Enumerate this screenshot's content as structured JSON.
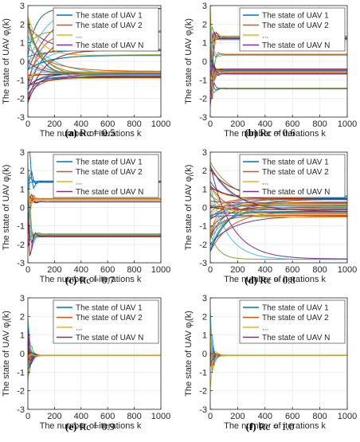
{
  "chart_data": [
    {
      "panel": "a",
      "caption_label": "(a)",
      "caption_text": "Rc = 0.5",
      "type": "line",
      "xlabel": "The number of iterations k",
      "ylabel": "The state of UAV φ",
      "ylabel_suffix": "(k)",
      "ylabel_sub": "i",
      "xlim": [
        0,
        1000
      ],
      "ylim": [
        -3,
        3
      ],
      "xticks": [
        0,
        200,
        400,
        600,
        800,
        1000
      ],
      "yticks": [
        -3,
        -2,
        -1,
        0,
        1,
        2,
        3
      ],
      "grid": true,
      "legend_position": "top-right",
      "legend": [
        "The state of UAV 1",
        "The state of UAV 2",
        "...",
        "The state of UAV N"
      ],
      "final_levels": [
        2.85,
        1.6,
        0.65,
        0.6,
        0.35,
        -0.55,
        -0.6,
        -0.65,
        -0.7,
        -0.75,
        -0.8,
        -0.9
      ],
      "converge_end": 1000
    },
    {
      "panel": "b",
      "caption_label": "(b)",
      "caption_text": "Rc = 0.6",
      "type": "line",
      "xlabel": "The number of iterations k",
      "ylabel": "The state of UAV φ",
      "ylabel_suffix": "(k)",
      "ylabel_sub": "i",
      "xlim": [
        0,
        1000
      ],
      "ylim": [
        -3,
        3
      ],
      "xticks": [
        0,
        200,
        400,
        600,
        800,
        1000
      ],
      "yticks": [
        -3,
        -2,
        -1,
        0,
        1,
        2,
        3
      ],
      "grid": true,
      "legend_position": "top-right",
      "legend": [
        "The state of UAV 1",
        "The state of UAV 2",
        "...",
        "The state of UAV N"
      ],
      "final_levels": [
        1.35,
        1.3,
        1.25,
        1.2,
        0.35,
        -0.4,
        -0.5,
        -0.55,
        -0.6,
        -0.65,
        -1.45
      ],
      "converge_end": 60
    },
    {
      "panel": "c",
      "caption_label": "(c)",
      "caption_text": "Rc = 0.7",
      "type": "line",
      "xlabel": "The number of iterations k",
      "ylabel": "The state of UAV φ",
      "ylabel_suffix": "(k)",
      "ylabel_sub": "i",
      "xlim": [
        0,
        1000
      ],
      "ylim": [
        -3,
        3
      ],
      "xticks": [
        0,
        200,
        400,
        600,
        800,
        1000
      ],
      "yticks": [
        -3,
        -2,
        -1,
        0,
        1,
        2,
        3
      ],
      "grid": true,
      "legend_position": "top-right",
      "legend": [
        "The state of UAV 1",
        "The state of UAV 2",
        "...",
        "The state of UAV N"
      ],
      "final_levels": [
        1.4,
        0.45,
        0.4,
        0.3,
        -1.45,
        -1.5,
        -1.55
      ],
      "converge_end": 60
    },
    {
      "panel": "d",
      "caption_label": "(d)",
      "caption_text": "Rc = 0.8",
      "type": "line",
      "xlabel": "The number of iterations k",
      "ylabel": "The state of UAV φ",
      "ylabel_suffix": "(k)",
      "ylabel_sub": "i",
      "xlim": [
        0,
        1000
      ],
      "ylim": [
        -3,
        3
      ],
      "xticks": [
        0,
        200,
        400,
        600,
        800,
        1000
      ],
      "yticks": [
        -3,
        -2,
        -1,
        0,
        1,
        2,
        3
      ],
      "grid": true,
      "legend_position": "top-right",
      "legend": [
        "The state of UAV 1",
        "The state of UAV 2",
        "...",
        "The state of UAV N"
      ],
      "final_levels": [
        0.6,
        0.5,
        0.4,
        0.3,
        0.2,
        0.1,
        0.0,
        -0.1,
        -0.2,
        -0.3,
        -0.4,
        -0.5,
        -2.8
      ],
      "converge_end": 1000
    },
    {
      "panel": "e",
      "caption_label": "(e)",
      "caption_text": "Rc = 0.9",
      "type": "line",
      "xlabel": "The number of iterations k",
      "ylabel": "The state of UAV φ",
      "ylabel_suffix": "(k)",
      "ylabel_sub": "i",
      "xlim": [
        0,
        1000
      ],
      "ylim": [
        -3,
        3
      ],
      "xticks": [
        0,
        200,
        400,
        600,
        800,
        1000
      ],
      "yticks": [
        -3,
        -2,
        -1,
        0,
        1,
        2,
        3
      ],
      "grid": true,
      "legend_position": "top-right",
      "legend": [
        "The state of UAV 1",
        "The state of UAV 2",
        "...",
        "The state of UAV N"
      ],
      "final_levels": [
        -0.1
      ],
      "converge_end": 60
    },
    {
      "panel": "f",
      "caption_label": "(f)",
      "caption_text": "Rc = 1.0",
      "type": "line",
      "xlabel": "The number of iterations k",
      "ylabel": "The state of UAV φ",
      "ylabel_suffix": "(k)",
      "ylabel_sub": "i",
      "xlim": [
        0,
        1000
      ],
      "ylim": [
        -3,
        3
      ],
      "xticks": [
        0,
        200,
        400,
        600,
        800,
        1000
      ],
      "yticks": [
        -3,
        -2,
        -1,
        0,
        1,
        2,
        3
      ],
      "grid": true,
      "legend_position": "top-right",
      "legend": [
        "The state of UAV 1",
        "The state of UAV 2",
        "...",
        "The state of UAV N"
      ],
      "final_levels": [
        -0.1
      ],
      "converge_end": 60
    }
  ],
  "colors": {
    "series": [
      "#0072BD",
      "#D95319",
      "#EDB120",
      "#7E2F8E",
      "#77AC30",
      "#4DBEEE",
      "#A2142F"
    ],
    "grid": "#e6e6e6",
    "axis": "#262626"
  }
}
